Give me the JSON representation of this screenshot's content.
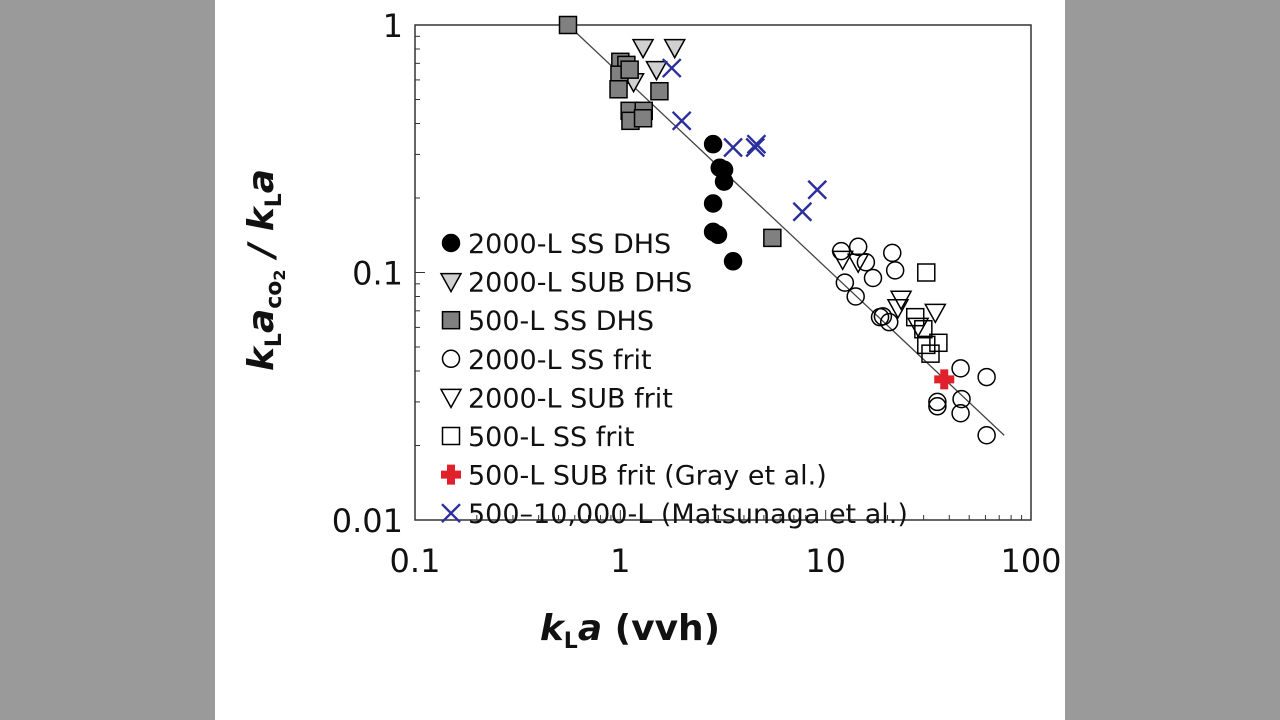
{
  "chart_data": {
    "type": "scatter",
    "xscale": "log",
    "yscale": "log",
    "xlabel": {
      "main": "k",
      "sub": "L",
      "main2": "a",
      "rest": " (vvh)"
    },
    "ylabel": {
      "k": "k",
      "L": "L",
      "a": "a",
      "co": "co",
      "two": "2",
      "sep": " / ",
      "k2": "k",
      "L2": "L",
      "a2": "a"
    },
    "xlim": [
      0.1,
      100
    ],
    "ylim": [
      0.01,
      1
    ],
    "xticks": [
      {
        "v": 0.1,
        "label": "0.1"
      },
      {
        "v": 1,
        "label": "1"
      },
      {
        "v": 10,
        "label": "10"
      },
      {
        "v": 100,
        "label": "100"
      }
    ],
    "yticks": [
      {
        "v": 0.01,
        "label": "0.01"
      },
      {
        "v": 0.1,
        "label": "0.1"
      },
      {
        "v": 1,
        "label": "1"
      }
    ],
    "legend_position": "lower-left",
    "fit_line": [
      [
        0.556,
        1.0
      ],
      [
        74,
        0.022
      ]
    ],
    "series": [
      {
        "name": "2000-L SS DHS",
        "marker": "circle",
        "fill": "#000000",
        "stroke": "#000000",
        "points": [
          [
            2.83,
            0.33
          ],
          [
            3.05,
            0.265
          ],
          [
            3.2,
            0.26
          ],
          [
            3.2,
            0.233
          ],
          [
            2.83,
            0.19
          ],
          [
            2.83,
            0.146
          ],
          [
            2.99,
            0.142
          ],
          [
            3.54,
            0.111
          ]
        ]
      },
      {
        "name": "2000-L SUB DHS",
        "marker": "triangle-down",
        "fill": "#d0d0d0",
        "stroke": "#000000",
        "points": [
          [
            1.29,
            0.81
          ],
          [
            1.84,
            0.81
          ],
          [
            1.5,
            0.66
          ],
          [
            1.16,
            0.59
          ]
        ]
      },
      {
        "name": "500-L SS DHS",
        "marker": "square",
        "fill": "#808080",
        "stroke": "#000000",
        "points": [
          [
            0.556,
            1.0
          ],
          [
            1.0,
            0.71
          ],
          [
            1.07,
            0.69
          ],
          [
            0.99,
            0.63
          ],
          [
            1.11,
            0.66
          ],
          [
            0.98,
            0.55
          ],
          [
            1.11,
            0.45
          ],
          [
            1.3,
            0.45
          ],
          [
            1.12,
            0.41
          ],
          [
            1.29,
            0.42
          ],
          [
            1.55,
            0.54
          ],
          [
            5.5,
            0.138
          ]
        ]
      },
      {
        "name": "2000-L SS frit",
        "marker": "circle",
        "fill": "none",
        "stroke": "#000000",
        "points": [
          [
            11.9,
            0.122
          ],
          [
            14.4,
            0.127
          ],
          [
            21.1,
            0.12
          ],
          [
            21.8,
            0.102
          ],
          [
            17.0,
            0.095
          ],
          [
            12.4,
            0.091
          ],
          [
            14.0,
            0.08
          ],
          [
            18.4,
            0.066
          ],
          [
            20.4,
            0.063
          ],
          [
            19.0,
            0.0665
          ],
          [
            15.7,
            0.11
          ],
          [
            45.4,
            0.041
          ],
          [
            60.8,
            0.0378
          ],
          [
            35.0,
            0.0288
          ],
          [
            35.0,
            0.03
          ],
          [
            45.9,
            0.0308
          ],
          [
            45.4,
            0.027
          ],
          [
            60.8,
            0.022
          ]
        ]
      },
      {
        "name": "2000-L SUB frit",
        "marker": "triangle-down",
        "fill": "none",
        "stroke": "#000000",
        "points": [
          [
            12.1,
            0.113
          ],
          [
            14.4,
            0.11
          ],
          [
            23.3,
            0.078
          ],
          [
            34.2,
            0.069
          ],
          [
            28.2,
            0.0606
          ],
          [
            22.5,
            0.072
          ]
        ]
      },
      {
        "name": "500-L SS frit",
        "marker": "square",
        "fill": "none",
        "stroke": "#000000",
        "points": [
          [
            30.9,
            0.1
          ],
          [
            27.3,
            0.066
          ],
          [
            29.9,
            0.059
          ],
          [
            30.9,
            0.051
          ],
          [
            35.4,
            0.052
          ],
          [
            32.4,
            0.047
          ]
        ]
      },
      {
        "name": "500-L SUB frit (Gray et al.)",
        "marker": "plus-filled",
        "fill": "#e0202a",
        "stroke": "#e0202a",
        "points": [
          [
            37.8,
            0.037
          ]
        ]
      },
      {
        "name": "500–10,000-L (Matsunaga et al.)",
        "marker": "x",
        "fill": "none",
        "stroke": "#2b2f9e",
        "points": [
          [
            1.78,
            0.67
          ],
          [
            1.99,
            0.41
          ],
          [
            3.54,
            0.32
          ],
          [
            4.54,
            0.32
          ],
          [
            4.6,
            0.33
          ],
          [
            7.7,
            0.176
          ],
          [
            9.1,
            0.216
          ]
        ]
      }
    ]
  }
}
